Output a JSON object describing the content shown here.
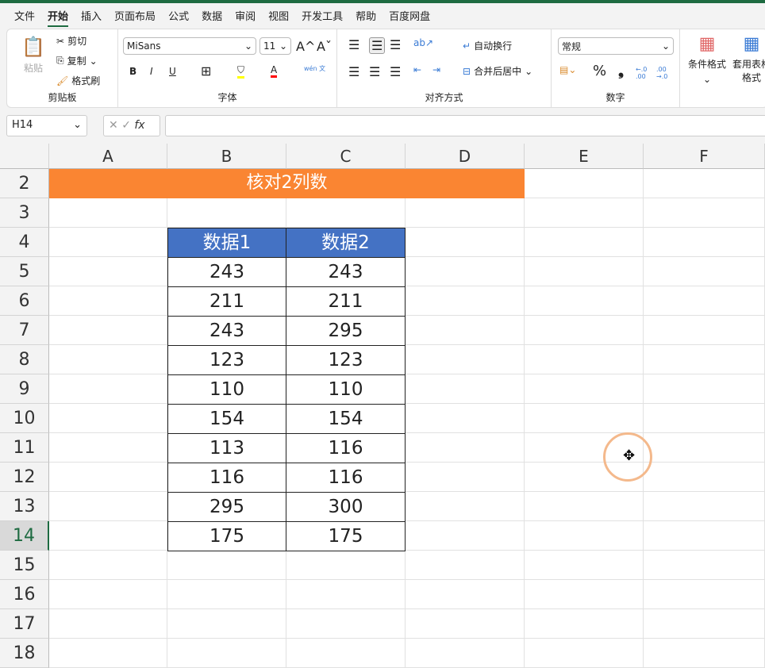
{
  "menu": [
    "文件",
    "开始",
    "插入",
    "页面布局",
    "公式",
    "数据",
    "审阅",
    "视图",
    "开发工具",
    "帮助",
    "百度网盘"
  ],
  "active_tab": "开始",
  "ribbon": {
    "clipboard": {
      "paste": "粘贴",
      "cut": "剪切",
      "copy": "复制",
      "format_painter": "格式刷",
      "label": "剪贴板"
    },
    "font": {
      "name": "MiSans",
      "size": "11",
      "bold": "B",
      "italic": "I",
      "underline": "U",
      "font_color_glyph": "A",
      "phonetic": "wén 文",
      "label": "字体",
      "grow": "A^",
      "shrink": "Aˇ"
    },
    "align": {
      "wrap": "自动换行",
      "merge": "合并后居中",
      "label": "对齐方式"
    },
    "number": {
      "format": "常规",
      "percent": "%",
      "comma": "❟",
      "inc": "←.0 .00",
      "dec": ".00 →.0",
      "label": "数字"
    },
    "styles": {
      "conditional": "条件格式",
      "table": "套用表格格式"
    },
    "colors": {
      "fill": "#ffff00",
      "font": "#ff0000"
    }
  },
  "formula_bar": {
    "name_box": "H14",
    "fx": "fx",
    "value": ""
  },
  "columns": [
    "A",
    "B",
    "C",
    "D",
    "E",
    "F"
  ],
  "rows": [
    "2",
    "3",
    "4",
    "5",
    "6",
    "7",
    "8",
    "9",
    "10",
    "11",
    "12",
    "13",
    "14",
    "15",
    "16",
    "17",
    "18"
  ],
  "selected_row": "14",
  "sheet": {
    "title": "核对2列数",
    "headers": [
      "数据1",
      "数据2"
    ],
    "data": [
      [
        "243",
        "243"
      ],
      [
        "211",
        "211"
      ],
      [
        "243",
        "295"
      ],
      [
        "123",
        "123"
      ],
      [
        "110",
        "110"
      ],
      [
        "154",
        "154"
      ],
      [
        "113",
        "116"
      ],
      [
        "116",
        "116"
      ],
      [
        "295",
        "300"
      ],
      [
        "175",
        "175"
      ]
    ],
    "title_color": "#fa8532",
    "header_color": "#4472c4"
  },
  "cursor_glyph": "✥"
}
